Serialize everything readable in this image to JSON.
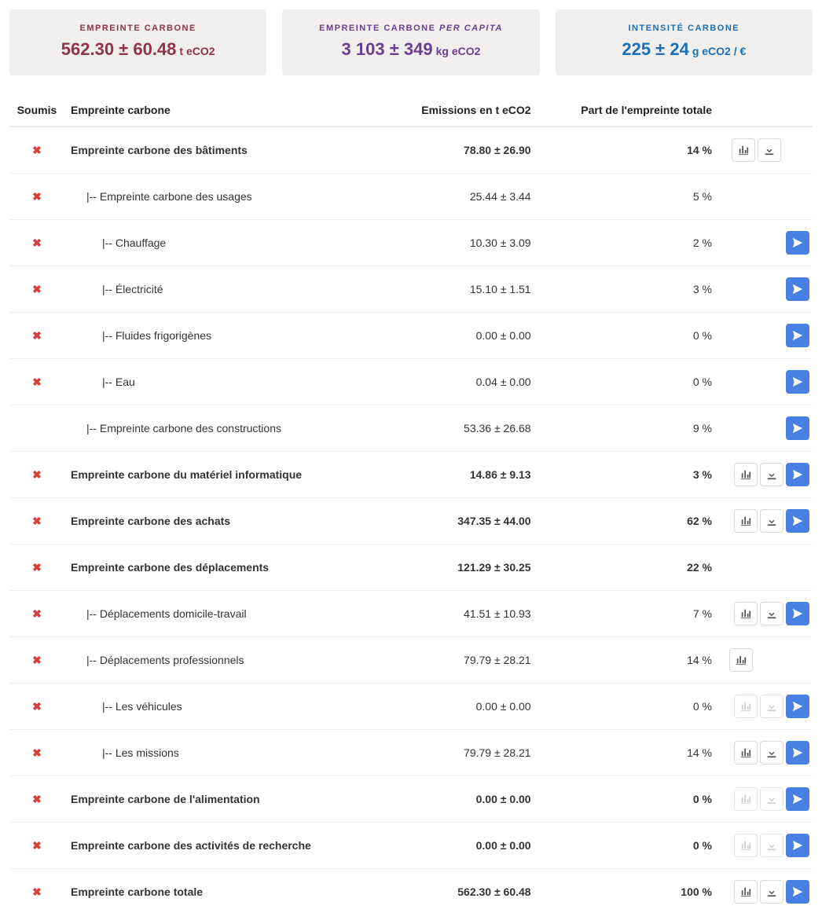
{
  "cards": [
    {
      "title_pre": "EMPREINTE CARBONE",
      "title_italic": "",
      "value": "562.30 ± 60.48",
      "unit": "t eCO2",
      "color": "c-maroon"
    },
    {
      "title_pre": "EMPREINTE CARBONE ",
      "title_italic": "PER CAPITA",
      "value": "3 103 ± 349",
      "unit": "kg eCO2",
      "color": "c-purple"
    },
    {
      "title_pre": "INTENSITÉ CARBONE",
      "title_italic": "",
      "value": "225 ± 24",
      "unit": "g eCO2 / €",
      "color": "c-blue"
    }
  ],
  "table": {
    "headers": {
      "soumis": "Soumis",
      "label": "Empreinte carbone",
      "emissions": "Emissions en t eCO2",
      "part": "Part de l'empreinte totale"
    },
    "rows": [
      {
        "x": true,
        "bold": true,
        "indent": 0,
        "label": "Empreinte carbone des bâtiments",
        "emissions": "78.80 ± 26.90",
        "part": "14 %",
        "chart": true,
        "chart_disabled": false,
        "download": true,
        "download_disabled": false,
        "send": false
      },
      {
        "x": true,
        "bold": false,
        "indent": 1,
        "label": "|-- Empreinte carbone des usages",
        "emissions": "25.44 ± 3.44",
        "part": "5 %",
        "chart": false,
        "chart_disabled": false,
        "download": false,
        "download_disabled": false,
        "send": false
      },
      {
        "x": true,
        "bold": false,
        "indent": 2,
        "label": "|-- Chauffage",
        "emissions": "10.30 ± 3.09",
        "part": "2 %",
        "chart": false,
        "chart_disabled": false,
        "download": false,
        "download_disabled": false,
        "send": true
      },
      {
        "x": true,
        "bold": false,
        "indent": 2,
        "label": "|-- Électricité",
        "emissions": "15.10 ± 1.51",
        "part": "3 %",
        "chart": false,
        "chart_disabled": false,
        "download": false,
        "download_disabled": false,
        "send": true
      },
      {
        "x": true,
        "bold": false,
        "indent": 2,
        "label": "|-- Fluides frigorigènes",
        "emissions": "0.00 ± 0.00",
        "part": "0 %",
        "chart": false,
        "chart_disabled": false,
        "download": false,
        "download_disabled": false,
        "send": true
      },
      {
        "x": true,
        "bold": false,
        "indent": 2,
        "label": "|-- Eau",
        "emissions": "0.04 ± 0.00",
        "part": "0 %",
        "chart": false,
        "chart_disabled": false,
        "download": false,
        "download_disabled": false,
        "send": true
      },
      {
        "x": false,
        "bold": false,
        "indent": 1,
        "label": "|-- Empreinte carbone des constructions",
        "emissions": "53.36 ± 26.68",
        "part": "9 %",
        "chart": false,
        "chart_disabled": false,
        "download": false,
        "download_disabled": false,
        "send": true
      },
      {
        "x": true,
        "bold": true,
        "indent": 0,
        "label": "Empreinte carbone du matériel informatique",
        "emissions": "14.86 ± 9.13",
        "part": "3 %",
        "chart": true,
        "chart_disabled": false,
        "download": true,
        "download_disabled": false,
        "send": true
      },
      {
        "x": true,
        "bold": true,
        "indent": 0,
        "label": "Empreinte carbone des achats",
        "emissions": "347.35 ± 44.00",
        "part": "62 %",
        "chart": true,
        "chart_disabled": false,
        "download": true,
        "download_disabled": false,
        "send": true
      },
      {
        "x": true,
        "bold": true,
        "indent": 0,
        "label": "Empreinte carbone des déplacements",
        "emissions": "121.29 ± 30.25",
        "part": "22 %",
        "chart": false,
        "chart_disabled": false,
        "download": false,
        "download_disabled": false,
        "send": false
      },
      {
        "x": true,
        "bold": false,
        "indent": 1,
        "label": "|-- Déplacements domicile-travail",
        "emissions": "41.51 ± 10.93",
        "part": "7 %",
        "chart": true,
        "chart_disabled": false,
        "download": true,
        "download_disabled": false,
        "send": true
      },
      {
        "x": true,
        "bold": false,
        "indent": 1,
        "label": "|-- Déplacements professionnels",
        "emissions": "79.79 ± 28.21",
        "part": "14 %",
        "chart": true,
        "chart_disabled": false,
        "download": false,
        "download_disabled": false,
        "send": false
      },
      {
        "x": true,
        "bold": false,
        "indent": 2,
        "label": "|-- Les véhicules",
        "emissions": "0.00 ± 0.00",
        "part": "0 %",
        "chart": true,
        "chart_disabled": true,
        "download": true,
        "download_disabled": true,
        "send": true
      },
      {
        "x": true,
        "bold": false,
        "indent": 2,
        "label": "|-- Les missions",
        "emissions": "79.79 ± 28.21",
        "part": "14 %",
        "chart": true,
        "chart_disabled": false,
        "download": true,
        "download_disabled": false,
        "send": true
      },
      {
        "x": true,
        "bold": true,
        "indent": 0,
        "label": "Empreinte carbone de l'alimentation",
        "emissions": "0.00 ± 0.00",
        "part": "0 %",
        "chart": true,
        "chart_disabled": true,
        "download": true,
        "download_disabled": true,
        "send": true
      },
      {
        "x": true,
        "bold": true,
        "indent": 0,
        "label": "Empreinte carbone des activités de recherche",
        "emissions": "0.00 ± 0.00",
        "part": "0 %",
        "chart": true,
        "chart_disabled": true,
        "download": true,
        "download_disabled": true,
        "send": true
      },
      {
        "x": true,
        "bold": true,
        "indent": 0,
        "label": "Empreinte carbone totale",
        "emissions": "562.30 ± 60.48",
        "part": "100 %",
        "chart": true,
        "chart_disabled": false,
        "download": true,
        "download_disabled": false,
        "send": true
      }
    ]
  }
}
